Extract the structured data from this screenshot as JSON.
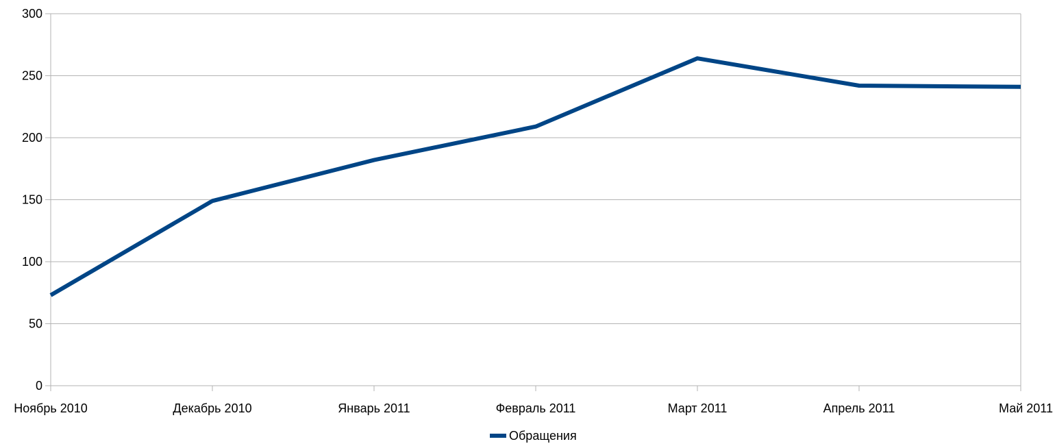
{
  "chart_data": {
    "type": "line",
    "categories": [
      "Ноябрь 2010",
      "Декабрь 2010",
      "Январь 2011",
      "Февраль 2011",
      "Март 2011",
      "Апрель 2011",
      "Май 2011"
    ],
    "series": [
      {
        "name": "Обращения",
        "values": [
          73,
          149,
          182,
          209,
          264,
          242,
          241
        ],
        "color": "#004586"
      }
    ],
    "ylim": [
      0,
      300
    ],
    "yticks": [
      0,
      50,
      100,
      150,
      200,
      250,
      300
    ],
    "grid": true,
    "legend_position": "bottom"
  }
}
